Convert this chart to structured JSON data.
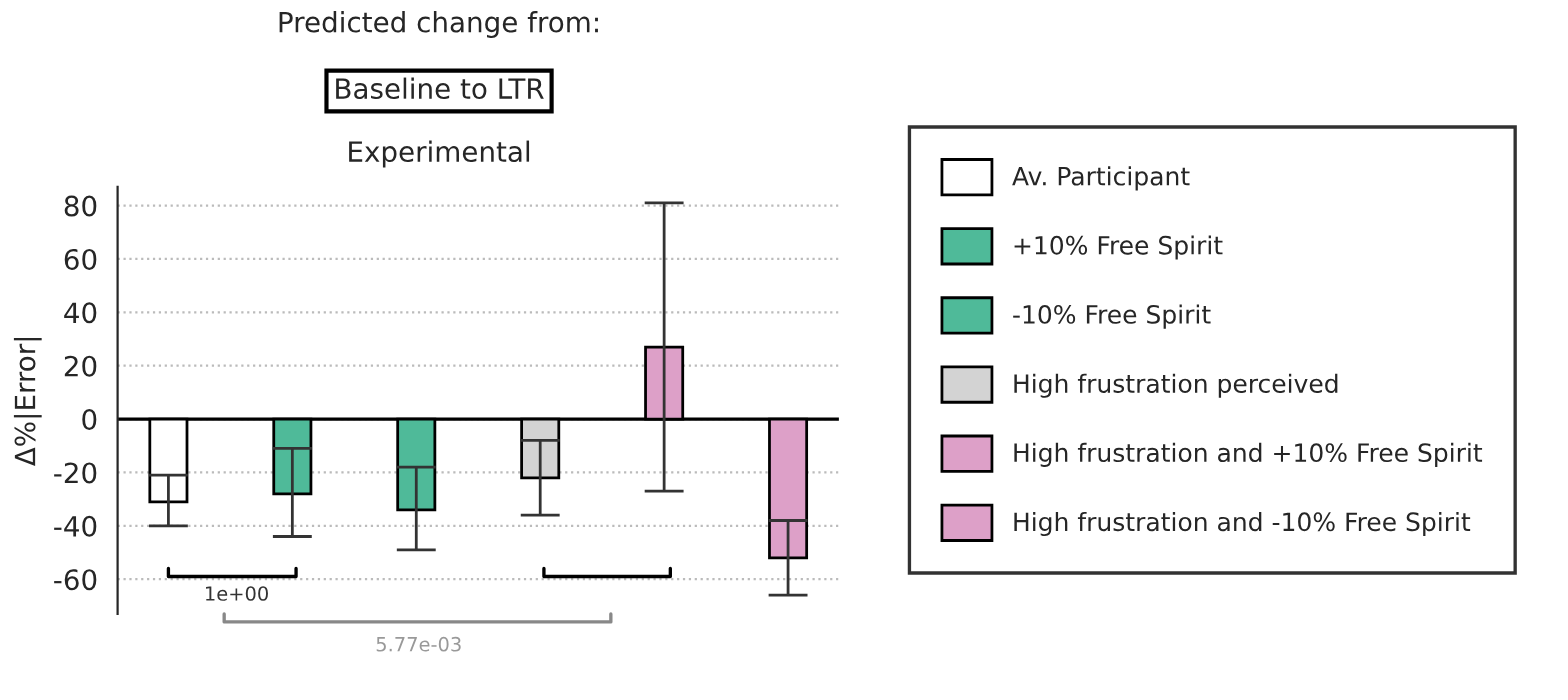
{
  "chart_data": {
    "type": "bar",
    "title": "Predicted change from:",
    "subtitle": "Baseline to LTR",
    "ylabel": "Δ%|Error|",
    "annotations": [
      "Experimental",
      "1e+00",
      "5.77e-03"
    ],
    "categories": [
      null,
      null,
      null,
      null,
      null,
      null
    ],
    "series": [
      {
        "name": "Av. Participant",
        "color": "#ffffff",
        "values": [
          -31,
          null,
          null,
          null,
          null,
          null
        ],
        "errors": [
          [
            -40,
            -21
          ],
          null,
          null,
          null,
          null,
          null
        ]
      },
      {
        "name": "+10% Free Spirit",
        "color": "#4fba99",
        "values": [
          null,
          -28,
          null,
          null,
          null,
          null
        ],
        "errors": [
          null,
          [
            -44,
            -11
          ],
          null,
          null,
          null,
          null
        ]
      },
      {
        "name": "-10% Free Spirit",
        "color": "#4fba99",
        "values": [
          null,
          null,
          -34,
          null,
          null,
          null
        ],
        "errors": [
          null,
          null,
          [
            -49,
            -18
          ],
          null,
          null,
          null
        ]
      },
      {
        "name": "High frustration perceived",
        "color": "#d3d3d3",
        "values": [
          null,
          null,
          null,
          -22,
          null,
          null
        ],
        "errors": [
          null,
          null,
          null,
          [
            -36,
            -8
          ],
          null,
          null
        ]
      },
      {
        "name": "High frustration and +10% Free Spirit",
        "color": "#dda0c8",
        "values": [
          null,
          null,
          null,
          null,
          27,
          null
        ],
        "errors": [
          null,
          null,
          null,
          null,
          [
            -27,
            81
          ],
          null
        ]
      },
      {
        "name": "High frustration and -10% Free Spirit",
        "color": "#dda0c8",
        "values": [
          null,
          null,
          null,
          null,
          null,
          -52
        ],
        "errors": [
          null,
          null,
          null,
          null,
          null,
          [
            -66,
            -38
          ]
        ]
      }
    ],
    "ylim": [
      -73,
      87
    ],
    "yticks": [
      -60,
      -40,
      -20,
      0,
      20,
      40,
      60,
      80
    ],
    "ref_lines": [
      {
        "axis": "y",
        "value": 0,
        "color": "#000000"
      }
    ],
    "grid": "y",
    "legend": "right"
  }
}
